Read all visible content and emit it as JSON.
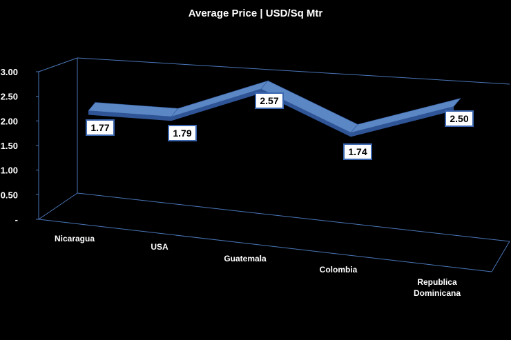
{
  "chart_data": {
    "type": "line",
    "title": "Average Price | USD/Sq Mtr",
    "categories": [
      "Nicaragua",
      "USA",
      "Guatemala",
      "Colombia",
      "Republica Dominicana"
    ],
    "category_lines": [
      [
        "Nicaragua"
      ],
      [
        "USA"
      ],
      [
        "Guatemala"
      ],
      [
        "Colombia"
      ],
      [
        "Republica",
        "Dominicana"
      ]
    ],
    "values": [
      1.77,
      1.79,
      2.57,
      1.74,
      2.5
    ],
    "data_labels": [
      "1.77",
      "1.79",
      "2.57",
      "1.74",
      "2.50"
    ],
    "y_tick_labels": [
      "-",
      "0.50",
      "1.00",
      "1.50",
      "2.00",
      "2.50",
      "3.00"
    ],
    "ylim": [
      0,
      3
    ],
    "style": "3d-ribbon",
    "grid": false,
    "legend": "none",
    "colors": {
      "background": "#000000",
      "ribbon_top": "#5b87c5",
      "ribbon_side": "#2f5597",
      "axis": "#4a76b8",
      "label_box_border": "#3a66b0",
      "label_box_fill": "#ffffff"
    }
  }
}
